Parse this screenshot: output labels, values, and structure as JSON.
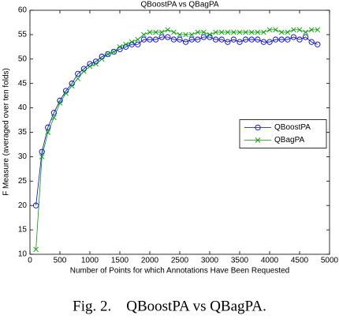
{
  "chart_data": {
    "type": "line",
    "title": "QBoostPA vs QBagPA",
    "xlabel": "Number of Points for which Annotations Have Been Requested",
    "ylabel": "F Measure (averaged over ten folds)",
    "x": [
      100,
      200,
      300,
      400,
      500,
      600,
      700,
      800,
      900,
      1000,
      1100,
      1200,
      1300,
      1400,
      1500,
      1600,
      1700,
      1800,
      1900,
      2000,
      2100,
      2200,
      2300,
      2400,
      2500,
      2600,
      2700,
      2800,
      2900,
      3000,
      3100,
      3200,
      3300,
      3400,
      3500,
      3600,
      3700,
      3800,
      3900,
      4000,
      4100,
      4200,
      4300,
      4400,
      4500,
      4600,
      4700,
      4800
    ],
    "series": [
      {
        "name": "QBoostPA",
        "color": "#0000ff",
        "marker": "o",
        "values": [
          20,
          31,
          36,
          39,
          41.5,
          43.5,
          45,
          47,
          48,
          49,
          49.5,
          50.5,
          51,
          51.5,
          52,
          52.5,
          53,
          53,
          54,
          54,
          54,
          54.5,
          54.5,
          54,
          54,
          53.5,
          54,
          54,
          54.5,
          54.5,
          54,
          54,
          53.5,
          54,
          53.5,
          54,
          54,
          54,
          53.5,
          53.5,
          54,
          54,
          54,
          54.5,
          54,
          54.5,
          53.5,
          53
        ]
      },
      {
        "name": "QBagPA",
        "color": "#00a000",
        "marker": "x",
        "values": [
          11,
          30,
          35,
          38,
          41,
          43,
          44.5,
          46,
          47.5,
          48.5,
          49,
          50,
          51,
          51.5,
          52.5,
          53,
          53.5,
          54,
          55,
          55.5,
          55.5,
          55.5,
          56,
          55.5,
          55,
          55,
          55,
          55.5,
          55.5,
          55,
          55.5,
          55.5,
          55.5,
          55.5,
          55.5,
          55.5,
          55.5,
          55.5,
          55.5,
          56,
          56,
          55.5,
          55.5,
          56,
          56,
          55.5,
          56,
          56
        ]
      }
    ],
    "xlim": [
      0,
      5000
    ],
    "xticks": [
      0,
      500,
      1000,
      1500,
      2000,
      2500,
      3000,
      3500,
      4000,
      4500,
      5000
    ],
    "ylim": [
      10,
      60
    ],
    "yticks": [
      10,
      15,
      20,
      25,
      30,
      35,
      40,
      45,
      50,
      55,
      60
    ],
    "grid": false,
    "legend": "center right"
  },
  "caption": "Fig. 2.    QBoostPA vs QBagPA."
}
